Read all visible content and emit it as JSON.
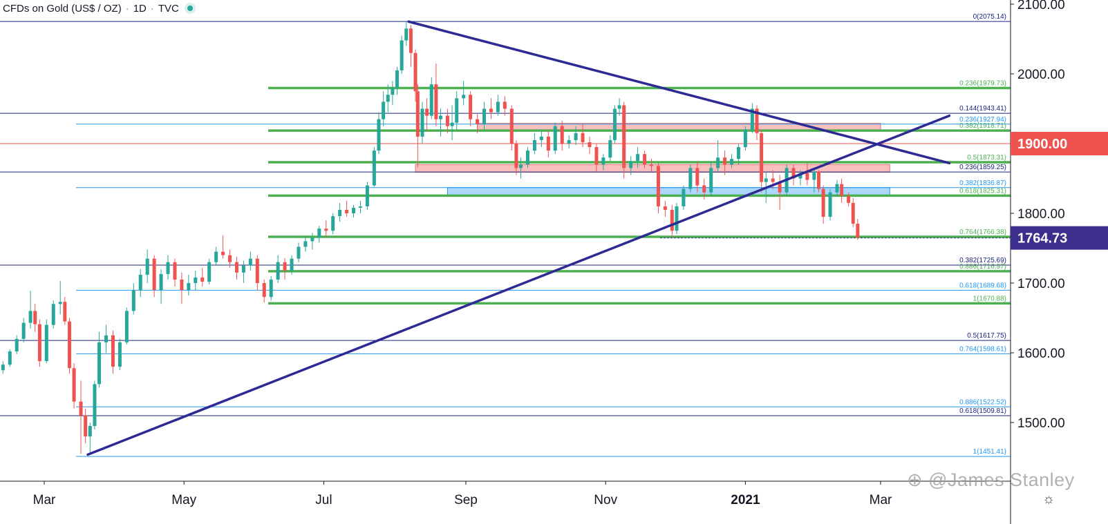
{
  "header": {
    "title": "CFDs on Gold (US$ / OZ)",
    "interval": "1D",
    "source": "TVC"
  },
  "watermark": "⊕ @James Stanley",
  "settings_icon": "gear-icon",
  "colors": {
    "bull": "#27a69a",
    "bear": "#ef5350",
    "fib_green": "#4caf50",
    "fib_blue": "#2196f3",
    "fib_navy": "#1a237e",
    "trendline": "#2e2a94",
    "resistance_red": "#ef5350",
    "last_price": "#3b2e8c"
  },
  "chart_data": {
    "type": "candlestick",
    "title": "CFDs on Gold (US$ / OZ)",
    "interval": "1D",
    "y_ticks": [
      "2100.00",
      "2000.00",
      "1900.00",
      "1800.00",
      "1700.00",
      "1600.00",
      "1500.00"
    ],
    "ylim": [
      1420,
      2107
    ],
    "x_ticks": [
      {
        "label": "Mar",
        "bold": false
      },
      {
        "label": "May",
        "bold": false
      },
      {
        "label": "Jul",
        "bold": false
      },
      {
        "label": "Sep",
        "bold": false
      },
      {
        "label": "Nov",
        "bold": false
      },
      {
        "label": "2021",
        "bold": true
      },
      {
        "label": "Mar",
        "bold": false
      }
    ],
    "price_badges": [
      {
        "price": 1900.0,
        "label": "1900.00",
        "color": "#ef5350"
      },
      {
        "price": 1764.73,
        "label": "1764.73",
        "color": "#3b2e8c"
      }
    ],
    "fib_levels": [
      {
        "price": 2075.14,
        "label": "0(2075.14)",
        "color": "navy"
      },
      {
        "price": 1979.73,
        "label": "0.236(1979.73)",
        "color": "green"
      },
      {
        "price": 1943.41,
        "label": "0.144(1943.41)",
        "color": "navy"
      },
      {
        "price": 1927.94,
        "label": "0.236(1927.94)",
        "color": "blue"
      },
      {
        "price": 1918.71,
        "label": "0.382(1918.71)",
        "color": "green"
      },
      {
        "price": 1873.31,
        "label": "0.5(1873.31)",
        "color": "green"
      },
      {
        "price": 1859.25,
        "label": "0.236(1859.25)",
        "color": "navy"
      },
      {
        "price": 1836.87,
        "label": "0.382(1836.87)",
        "color": "blue"
      },
      {
        "price": 1825.31,
        "label": "0.618(1825.31)",
        "color": "green"
      },
      {
        "price": 1766.38,
        "label": "0.764(1766.38)",
        "color": "green"
      },
      {
        "price": 1725.69,
        "label": "0.382(1725.69)",
        "color": "navy"
      },
      {
        "price": 1716.97,
        "label": "0.886(1716.97)",
        "color": "green"
      },
      {
        "price": 1689.68,
        "label": "0.618(1689.68)",
        "color": "blue"
      },
      {
        "price": 1670.88,
        "label": "1(1670.88)",
        "color": "green"
      },
      {
        "price": 1617.75,
        "label": "0.5(1617.75)",
        "color": "navy"
      },
      {
        "price": 1598.61,
        "label": "0.764(1598.61)",
        "color": "blue"
      },
      {
        "price": 1522.52,
        "label": "0.886(1522.52)",
        "color": "blue"
      },
      {
        "price": 1509.81,
        "label": "0.618(1509.81)",
        "color": "navy"
      },
      {
        "price": 1451.41,
        "label": "1(1451.41)",
        "color": "blue"
      }
    ],
    "zones": [
      {
        "name": "resistance-zone-upper",
        "price_from": 1919,
        "price_to": 1929,
        "start": "2020-09-06",
        "end": "2021-03-01",
        "color": "#f4a9a7"
      },
      {
        "name": "resistance-zone-lower",
        "price_from": 1859,
        "price_to": 1870,
        "start": "2020-08-10",
        "end": "2021-03-05",
        "color": "#f4a9a7"
      },
      {
        "name": "support-zone",
        "price_from": 1826,
        "price_to": 1837,
        "start": "2020-08-24",
        "end": "2021-03-05",
        "color": "#90caf9"
      }
    ],
    "trendlines": [
      {
        "name": "descending-trendline",
        "points": [
          [
            "2020-08-07",
            2075
          ],
          [
            "2021-03-31",
            1872
          ]
        ]
      },
      {
        "name": "ascending-trendline",
        "points": [
          [
            "2020-03-20",
            1454
          ],
          [
            "2021-03-31",
            1940
          ]
        ]
      }
    ],
    "last_price": 1764.73,
    "candles": [
      [
        "2020-02-03",
        1576,
        1582,
        1563,
        1567
      ],
      [
        "2020-02-06",
        1567,
        1574,
        1562,
        1571
      ],
      [
        "2020-02-09",
        1571,
        1580,
        1566,
        1575
      ],
      [
        "2020-02-12",
        1575,
        1588,
        1570,
        1583
      ],
      [
        "2020-02-15",
        1583,
        1605,
        1580,
        1602
      ],
      [
        "2020-02-18",
        1602,
        1625,
        1598,
        1620
      ],
      [
        "2020-02-21",
        1620,
        1650,
        1615,
        1643
      ],
      [
        "2020-02-24",
        1643,
        1689,
        1635,
        1660
      ],
      [
        "2020-02-26",
        1660,
        1670,
        1630,
        1641
      ],
      [
        "2020-02-28",
        1641,
        1648,
        1580,
        1588
      ],
      [
        "2020-03-02",
        1588,
        1648,
        1585,
        1640
      ],
      [
        "2020-03-05",
        1640,
        1675,
        1635,
        1670
      ],
      [
        "2020-03-08",
        1670,
        1703,
        1655,
        1673
      ],
      [
        "2020-03-10",
        1673,
        1680,
        1640,
        1645
      ],
      [
        "2020-03-12",
        1645,
        1650,
        1570,
        1578
      ],
      [
        "2020-03-14",
        1578,
        1585,
        1520,
        1530
      ],
      [
        "2020-03-17",
        1530,
        1560,
        1455,
        1510
      ],
      [
        "2020-03-19",
        1510,
        1520,
        1470,
        1480
      ],
      [
        "2020-03-21",
        1480,
        1500,
        1455,
        1495
      ],
      [
        "2020-03-23",
        1495,
        1560,
        1490,
        1555
      ],
      [
        "2020-03-25",
        1555,
        1630,
        1550,
        1615
      ],
      [
        "2020-03-28",
        1615,
        1640,
        1600,
        1625
      ],
      [
        "2020-03-31",
        1625,
        1632,
        1570,
        1580
      ],
      [
        "2020-04-03",
        1580,
        1620,
        1575,
        1615
      ],
      [
        "2020-04-06",
        1615,
        1665,
        1612,
        1660
      ],
      [
        "2020-04-09",
        1660,
        1700,
        1655,
        1690
      ],
      [
        "2020-04-12",
        1690,
        1720,
        1680,
        1712
      ],
      [
        "2020-04-15",
        1712,
        1748,
        1700,
        1735
      ],
      [
        "2020-04-18",
        1735,
        1740,
        1680,
        1690
      ],
      [
        "2020-04-21",
        1690,
        1720,
        1670,
        1713
      ],
      [
        "2020-04-24",
        1713,
        1740,
        1705,
        1730
      ],
      [
        "2020-04-27",
        1730,
        1735,
        1695,
        1705
      ],
      [
        "2020-04-30",
        1705,
        1715,
        1670,
        1690
      ],
      [
        "2020-05-03",
        1690,
        1712,
        1682,
        1700
      ],
      [
        "2020-05-06",
        1700,
        1718,
        1690,
        1708
      ],
      [
        "2020-05-09",
        1708,
        1722,
        1695,
        1702
      ],
      [
        "2020-05-12",
        1702,
        1735,
        1698,
        1730
      ],
      [
        "2020-05-15",
        1730,
        1752,
        1725,
        1745
      ],
      [
        "2020-05-18",
        1745,
        1768,
        1735,
        1740
      ],
      [
        "2020-05-21",
        1740,
        1748,
        1722,
        1730
      ],
      [
        "2020-05-24",
        1730,
        1738,
        1705,
        1715
      ],
      [
        "2020-05-27",
        1715,
        1732,
        1700,
        1725
      ],
      [
        "2020-05-30",
        1725,
        1745,
        1718,
        1735
      ],
      [
        "2020-06-02",
        1735,
        1740,
        1690,
        1700
      ],
      [
        "2020-06-05",
        1700,
        1705,
        1672,
        1680
      ],
      [
        "2020-06-08",
        1680,
        1710,
        1675,
        1705
      ],
      [
        "2020-06-11",
        1705,
        1740,
        1700,
        1730
      ],
      [
        "2020-06-14",
        1730,
        1736,
        1705,
        1718
      ],
      [
        "2020-06-17",
        1718,
        1740,
        1712,
        1735
      ],
      [
        "2020-06-20",
        1735,
        1758,
        1730,
        1752
      ],
      [
        "2020-06-23",
        1752,
        1768,
        1745,
        1760
      ],
      [
        "2020-06-26",
        1760,
        1772,
        1748,
        1765
      ],
      [
        "2020-06-29",
        1765,
        1782,
        1758,
        1778
      ],
      [
        "2020-07-02",
        1778,
        1790,
        1765,
        1775
      ],
      [
        "2020-07-05",
        1775,
        1800,
        1770,
        1796
      ],
      [
        "2020-07-08",
        1796,
        1815,
        1788,
        1805
      ],
      [
        "2020-07-11",
        1805,
        1818,
        1795,
        1800
      ],
      [
        "2020-07-14",
        1800,
        1812,
        1794,
        1808
      ],
      [
        "2020-07-17",
        1808,
        1818,
        1800,
        1810
      ],
      [
        "2020-07-20",
        1810,
        1845,
        1805,
        1840
      ],
      [
        "2020-07-23",
        1840,
        1895,
        1838,
        1890
      ],
      [
        "2020-07-25",
        1890,
        1945,
        1885,
        1935
      ],
      [
        "2020-07-27",
        1935,
        1975,
        1925,
        1960
      ],
      [
        "2020-07-29",
        1960,
        1985,
        1945,
        1970
      ],
      [
        "2020-07-31",
        1970,
        1990,
        1955,
        1980
      ],
      [
        "2020-08-02",
        1980,
        2010,
        1970,
        2005
      ],
      [
        "2020-08-04",
        2005,
        2055,
        2000,
        2048
      ],
      [
        "2020-08-06",
        2048,
        2075,
        2040,
        2065
      ],
      [
        "2020-08-08",
        2065,
        2070,
        2010,
        2030
      ],
      [
        "2020-08-10",
        2030,
        2035,
        1960,
        1975
      ],
      [
        "2020-08-11",
        1975,
        1985,
        1866,
        1910
      ],
      [
        "2020-08-13",
        1910,
        1960,
        1900,
        1950
      ],
      [
        "2020-08-15",
        1950,
        1965,
        1920,
        1940
      ],
      [
        "2020-08-17",
        1940,
        1995,
        1935,
        1985
      ],
      [
        "2020-08-19",
        1985,
        2015,
        1925,
        1935
      ],
      [
        "2020-08-21",
        1935,
        1950,
        1910,
        1940
      ],
      [
        "2020-08-24",
        1940,
        1950,
        1915,
        1925
      ],
      [
        "2020-08-26",
        1925,
        1955,
        1905,
        1930
      ],
      [
        "2020-08-28",
        1930,
        1975,
        1920,
        1965
      ],
      [
        "2020-08-31",
        1965,
        1990,
        1955,
        1970
      ],
      [
        "2020-09-03",
        1970,
        1975,
        1925,
        1935
      ],
      [
        "2020-09-06",
        1935,
        1942,
        1915,
        1928
      ],
      [
        "2020-09-09",
        1928,
        1960,
        1920,
        1950
      ],
      [
        "2020-09-12",
        1950,
        1965,
        1935,
        1945
      ],
      [
        "2020-09-15",
        1945,
        1970,
        1940,
        1960
      ],
      [
        "2020-09-18",
        1960,
        1968,
        1940,
        1950
      ],
      [
        "2020-09-21",
        1950,
        1955,
        1890,
        1900
      ],
      [
        "2020-09-23",
        1900,
        1905,
        1855,
        1865
      ],
      [
        "2020-09-25",
        1865,
        1880,
        1850,
        1870
      ],
      [
        "2020-09-28",
        1870,
        1895,
        1865,
        1890
      ],
      [
        "2020-10-01",
        1890,
        1915,
        1885,
        1905
      ],
      [
        "2020-10-04",
        1905,
        1920,
        1895,
        1910
      ],
      [
        "2020-10-07",
        1910,
        1918,
        1880,
        1890
      ],
      [
        "2020-10-10",
        1890,
        1930,
        1885,
        1925
      ],
      [
        "2020-10-13",
        1925,
        1933,
        1890,
        1900
      ],
      [
        "2020-10-16",
        1900,
        1912,
        1893,
        1905
      ],
      [
        "2020-10-19",
        1905,
        1925,
        1898,
        1915
      ],
      [
        "2020-10-22",
        1915,
        1928,
        1895,
        1902
      ],
      [
        "2020-10-25",
        1902,
        1910,
        1885,
        1895
      ],
      [
        "2020-10-28",
        1895,
        1900,
        1860,
        1870
      ],
      [
        "2020-10-31",
        1870,
        1885,
        1862,
        1880
      ],
      [
        "2020-11-03",
        1880,
        1912,
        1875,
        1905
      ],
      [
        "2020-11-05",
        1905,
        1955,
        1900,
        1950
      ],
      [
        "2020-11-07",
        1950,
        1965,
        1940,
        1955
      ],
      [
        "2020-11-09",
        1955,
        1960,
        1850,
        1865
      ],
      [
        "2020-11-12",
        1865,
        1882,
        1855,
        1875
      ],
      [
        "2020-11-15",
        1875,
        1895,
        1865,
        1885
      ],
      [
        "2020-11-18",
        1885,
        1890,
        1865,
        1870
      ],
      [
        "2020-11-21",
        1870,
        1878,
        1860,
        1868
      ],
      [
        "2020-11-24",
        1868,
        1872,
        1800,
        1810
      ],
      [
        "2020-11-27",
        1810,
        1818,
        1795,
        1805
      ],
      [
        "2020-11-30",
        1805,
        1812,
        1765,
        1775
      ],
      [
        "2020-12-02",
        1775,
        1815,
        1770,
        1810
      ],
      [
        "2020-12-05",
        1810,
        1840,
        1805,
        1835
      ],
      [
        "2020-12-08",
        1835,
        1870,
        1830,
        1865
      ],
      [
        "2020-12-11",
        1865,
        1875,
        1830,
        1840
      ],
      [
        "2020-12-14",
        1840,
        1850,
        1820,
        1830
      ],
      [
        "2020-12-17",
        1830,
        1875,
        1825,
        1865
      ],
      [
        "2020-12-20",
        1865,
        1905,
        1860,
        1880
      ],
      [
        "2020-12-23",
        1880,
        1890,
        1855,
        1870
      ],
      [
        "2020-12-26",
        1870,
        1885,
        1865,
        1878
      ],
      [
        "2020-12-29",
        1878,
        1900,
        1870,
        1895
      ],
      [
        "2021-01-01",
        1895,
        1925,
        1890,
        1920
      ],
      [
        "2021-01-04",
        1920,
        1958,
        1915,
        1950
      ],
      [
        "2021-01-06",
        1950,
        1955,
        1905,
        1915
      ],
      [
        "2021-01-08",
        1915,
        1920,
        1830,
        1845
      ],
      [
        "2021-01-10",
        1845,
        1860,
        1815,
        1850
      ],
      [
        "2021-01-13",
        1850,
        1862,
        1835,
        1845
      ],
      [
        "2021-01-16",
        1845,
        1855,
        1805,
        1830
      ],
      [
        "2021-01-19",
        1830,
        1870,
        1825,
        1865
      ],
      [
        "2021-01-22",
        1865,
        1870,
        1840,
        1850
      ],
      [
        "2021-01-25",
        1850,
        1862,
        1840,
        1858
      ],
      [
        "2021-01-28",
        1858,
        1872,
        1840,
        1848
      ],
      [
        "2021-01-31",
        1848,
        1865,
        1830,
        1860
      ],
      [
        "2021-02-02",
        1860,
        1862,
        1830,
        1835
      ],
      [
        "2021-02-04",
        1835,
        1840,
        1785,
        1795
      ],
      [
        "2021-02-07",
        1795,
        1835,
        1790,
        1830
      ],
      [
        "2021-02-10",
        1830,
        1848,
        1825,
        1842
      ],
      [
        "2021-02-12",
        1842,
        1850,
        1815,
        1825
      ],
      [
        "2021-02-15",
        1825,
        1830,
        1810,
        1815
      ],
      [
        "2021-02-17",
        1815,
        1822,
        1780,
        1785
      ],
      [
        "2021-02-19",
        1785,
        1792,
        1762,
        1765
      ]
    ]
  }
}
